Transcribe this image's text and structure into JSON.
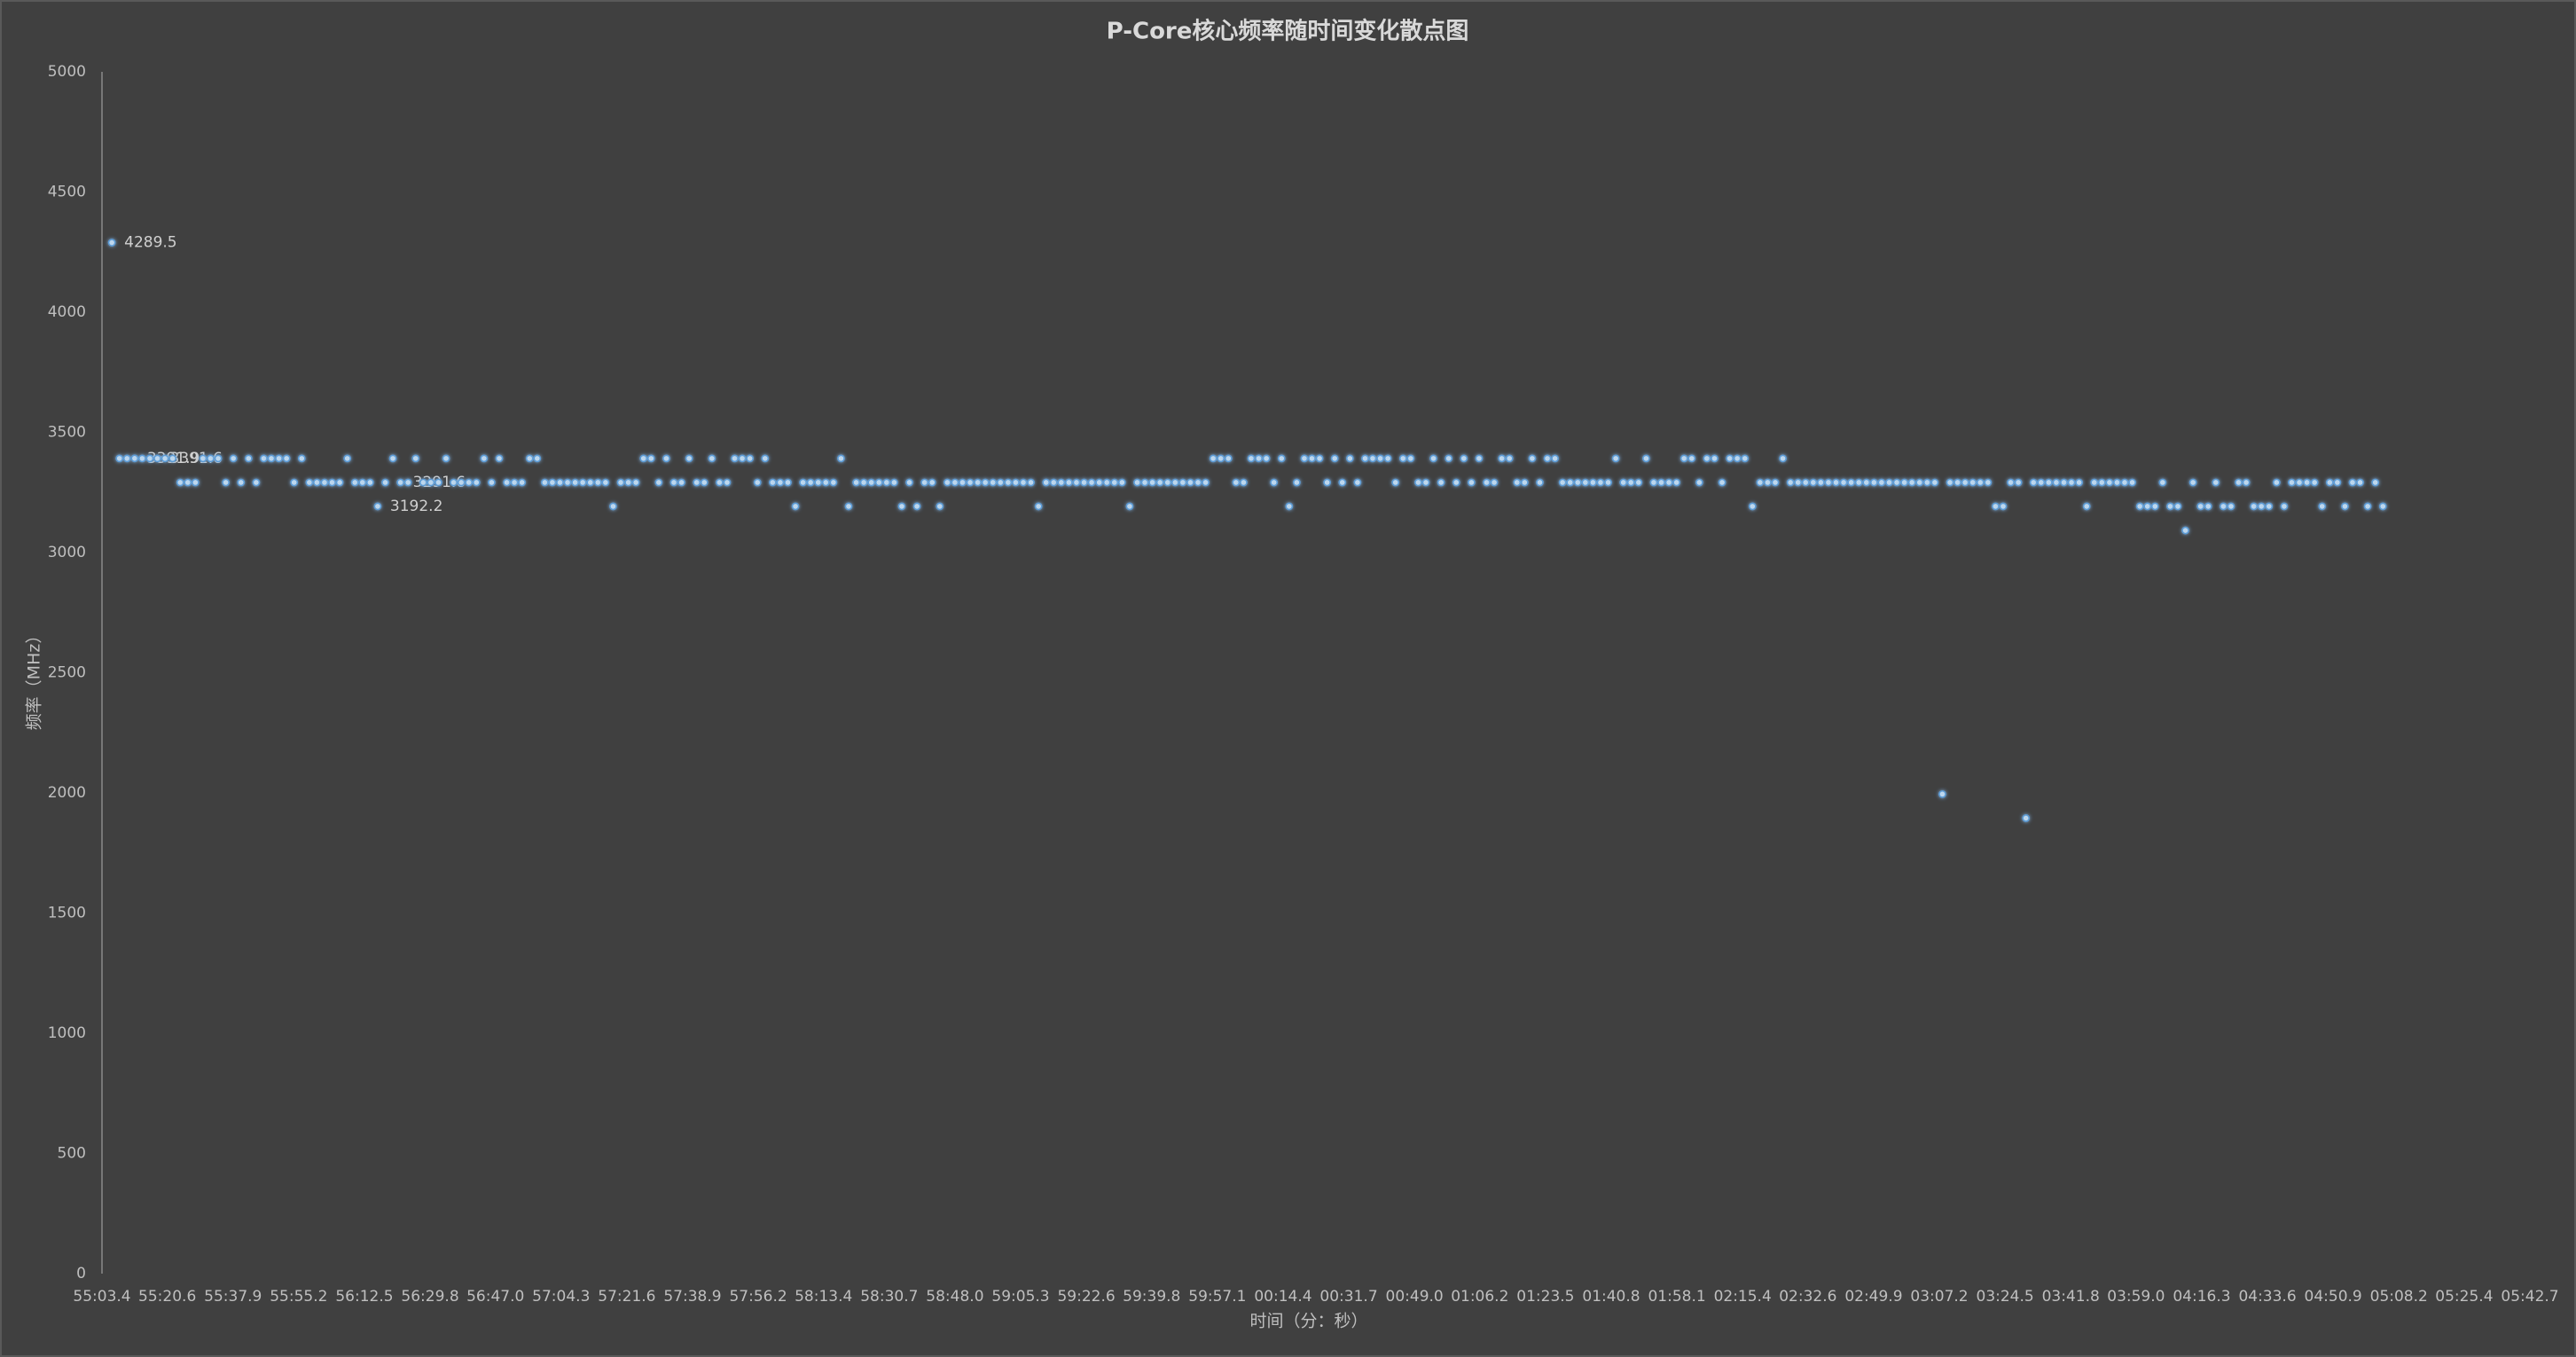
{
  "chart_data": {
    "type": "scatter",
    "title": "P-Core核心频率随时间变化散点图",
    "x_label": "时间（分：秒）",
    "y_label": "频率（MHz）",
    "color": "#5b9bd5",
    "grid": false,
    "xlim": [
      0,
      639.3
    ],
    "xticks": [
      {
        "value": 0,
        "label": "55:03.4"
      },
      {
        "value": 17.2,
        "label": "55:20.6"
      },
      {
        "value": 34.5,
        "label": "55:37.9"
      },
      {
        "value": 51.8,
        "label": "55:55.2"
      },
      {
        "value": 69.1,
        "label": "56:12.5"
      },
      {
        "value": 86.4,
        "label": "56:29.8"
      },
      {
        "value": 103.6,
        "label": "56:47.0"
      },
      {
        "value": 120.9,
        "label": "57:04.3"
      },
      {
        "value": 138.2,
        "label": "57:21.6"
      },
      {
        "value": 155.5,
        "label": "57:38.9"
      },
      {
        "value": 172.8,
        "label": "57:56.2"
      },
      {
        "value": 190.0,
        "label": "58:13.4"
      },
      {
        "value": 207.3,
        "label": "58:30.7"
      },
      {
        "value": 224.6,
        "label": "58:48.0"
      },
      {
        "value": 241.9,
        "label": "59:05.3"
      },
      {
        "value": 259.2,
        "label": "59:22.6"
      },
      {
        "value": 276.4,
        "label": "59:39.8"
      },
      {
        "value": 293.7,
        "label": "59:57.1"
      },
      {
        "value": 311.0,
        "label": "00:14.4"
      },
      {
        "value": 328.3,
        "label": "00:31.7"
      },
      {
        "value": 345.6,
        "label": "00:49.0"
      },
      {
        "value": 362.8,
        "label": "01:06.2"
      },
      {
        "value": 380.1,
        "label": "01:23.5"
      },
      {
        "value": 397.4,
        "label": "01:40.8"
      },
      {
        "value": 414.7,
        "label": "01:58.1"
      },
      {
        "value": 432.0,
        "label": "02:15.4"
      },
      {
        "value": 449.2,
        "label": "02:32.6"
      },
      {
        "value": 466.5,
        "label": "02:49.9"
      },
      {
        "value": 483.8,
        "label": "03:07.2"
      },
      {
        "value": 501.1,
        "label": "03:24.5"
      },
      {
        "value": 518.4,
        "label": "03:41.8"
      },
      {
        "value": 535.6,
        "label": "03:59.0"
      },
      {
        "value": 552.9,
        "label": "04:16.3"
      },
      {
        "value": 570.2,
        "label": "04:33.6"
      },
      {
        "value": 587.5,
        "label": "04:50.9"
      },
      {
        "value": 604.8,
        "label": "05:08.2"
      },
      {
        "value": 622.0,
        "label": "05:25.4"
      },
      {
        "value": 639.3,
        "label": "05:42.7"
      }
    ],
    "ylim": [
      0,
      5000
    ],
    "yticks": [
      0,
      500,
      1000,
      1500,
      2000,
      2500,
      3000,
      3500,
      4000,
      4500,
      5000
    ],
    "x": [
      2.6,
      4.6,
      6.6,
      8.6,
      10.6,
      12.6,
      14.6,
      16.6,
      18.6,
      20.6,
      22.6,
      24.6,
      26.6,
      28.6,
      30.6,
      32.6,
      34.6,
      36.6,
      38.6,
      40.6,
      42.6,
      44.6,
      46.6,
      48.6,
      50.6,
      52.6,
      54.6,
      56.6,
      58.6,
      60.6,
      62.6,
      64.6,
      66.6,
      68.6,
      70.6,
      72.6,
      74.6,
      76.6,
      78.6,
      80.6,
      82.6,
      84.6,
      86.6,
      88.6,
      90.6,
      92.6,
      94.6,
      96.6,
      98.6,
      100.6,
      102.6,
      104.6,
      106.6,
      108.6,
      110.6,
      112.6,
      114.6,
      116.6,
      118.6,
      120.6,
      122.6,
      124.6,
      126.6,
      128.6,
      130.6,
      132.6,
      134.6,
      136.6,
      138.6,
      140.6,
      142.6,
      144.6,
      146.6,
      148.6,
      150.6,
      152.6,
      154.6,
      156.6,
      158.6,
      160.6,
      162.6,
      164.6,
      166.6,
      168.6,
      170.6,
      172.6,
      174.6,
      176.6,
      178.6,
      180.6,
      182.6,
      184.6,
      186.6,
      188.6,
      190.6,
      192.6,
      194.6,
      196.6,
      198.6,
      200.6,
      202.6,
      204.6,
      206.6,
      208.6,
      210.6,
      212.6,
      214.6,
      216.6,
      218.6,
      220.6,
      222.6,
      224.6,
      226.6,
      228.6,
      230.6,
      232.6,
      234.6,
      236.6,
      238.6,
      240.6,
      242.6,
      244.6,
      246.6,
      248.6,
      250.6,
      252.6,
      254.6,
      256.6,
      258.6,
      260.6,
      262.6,
      264.6,
      266.6,
      268.6,
      270.6,
      272.6,
      274.6,
      276.6,
      278.6,
      280.6,
      282.6,
      284.6,
      286.6,
      288.6,
      290.6,
      292.6,
      294.6,
      296.6,
      298.6,
      300.6,
      302.6,
      304.6,
      306.6,
      308.6,
      310.6,
      312.6,
      314.6,
      316.6,
      318.6,
      320.6,
      322.6,
      324.6,
      326.6,
      328.6,
      330.6,
      332.6,
      334.6,
      336.6,
      338.6,
      340.6,
      342.6,
      344.6,
      346.6,
      348.6,
      350.6,
      352.6,
      354.6,
      356.6,
      358.6,
      360.6,
      362.6,
      364.6,
      366.6,
      368.6,
      370.6,
      372.6,
      374.6,
      376.6,
      378.6,
      380.6,
      382.6,
      384.6,
      386.6,
      388.6,
      390.6,
      392.6,
      394.6,
      396.6,
      398.6,
      400.6,
      402.6,
      404.6,
      406.6,
      408.6,
      410.6,
      412.6,
      414.6,
      416.6,
      418.6,
      420.6,
      422.6,
      424.6,
      426.6,
      428.6,
      430.6,
      432.6,
      434.6,
      436.6,
      438.6,
      440.6,
      442.6,
      444.6,
      446.6,
      448.6,
      450.6,
      452.6,
      454.6,
      456.6,
      458.6,
      460.6,
      462.6,
      464.6,
      466.6,
      468.6,
      470.6,
      472.6,
      474.6,
      476.6,
      478.6,
      480.6,
      482.6,
      484.6,
      486.6,
      488.6,
      490.6,
      492.6,
      494.6,
      496.6,
      498.6,
      500.6,
      502.6,
      504.6,
      506.6,
      508.6,
      510.6,
      512.6,
      514.6,
      516.6,
      518.6,
      520.6,
      522.6,
      524.6,
      526.6,
      528.6,
      530.6,
      532.6,
      534.6,
      536.6,
      538.6,
      540.6,
      542.6,
      544.6,
      546.6,
      548.6,
      550.6,
      552.6,
      554.6,
      556.6,
      558.6,
      560.6,
      562.6,
      564.6,
      566.6,
      568.6,
      570.6,
      572.6,
      574.6,
      576.6,
      578.6,
      580.6,
      582.6,
      584.6,
      586.6,
      588.6,
      590.6,
      592.6,
      594.6,
      596.6,
      598.6,
      600.6
    ],
    "values": [
      4289.5,
      3391.6,
      3391.6,
      3391.9,
      3391.6,
      3391.6,
      3391.6,
      3391.6,
      3391.6,
      3291.6,
      3291.6,
      3291.6,
      3391.6,
      3391.6,
      3391.6,
      3291.6,
      3391.6,
      3291.6,
      3391.6,
      3291.6,
      3391.6,
      3391.6,
      3391.6,
      3391.6,
      3291.6,
      3391.6,
      3291.6,
      3291.6,
      3291.6,
      3291.6,
      3291.6,
      3391.6,
      3291.6,
      3291.6,
      3291.6,
      3192.2,
      3291.6,
      3391.6,
      3291.6,
      3291.6,
      3391.6,
      3291.6,
      3291.6,
      3291.6,
      3391.6,
      3291.6,
      3291.6,
      3291.6,
      3291.6,
      3391.6,
      3291.6,
      3391.6,
      3291.6,
      3291.6,
      3291.6,
      3391.6,
      3391.6,
      3291.6,
      3291.6,
      3291.6,
      3291.6,
      3291.6,
      3291.6,
      3291.6,
      3291.6,
      3291.6,
      3192.2,
      3291.6,
      3291.6,
      3291.6,
      3391.6,
      3391.6,
      3291.6,
      3391.6,
      3291.6,
      3291.6,
      3391.6,
      3291.6,
      3291.6,
      3391.6,
      3291.6,
      3291.6,
      3391.6,
      3391.6,
      3391.6,
      3291.6,
      3391.6,
      3291.6,
      3291.6,
      3291.6,
      3192.2,
      3291.6,
      3291.6,
      3291.6,
      3291.6,
      3291.6,
      3391.6,
      3192.2,
      3291.6,
      3291.6,
      3291.6,
      3291.6,
      3291.6,
      3291.6,
      3192.2,
      3291.6,
      3192.2,
      3291.6,
      3291.6,
      3192.2,
      3291.6,
      3291.6,
      3291.6,
      3291.6,
      3291.6,
      3291.6,
      3291.6,
      3291.6,
      3291.6,
      3291.6,
      3291.6,
      3291.6,
      3192.2,
      3291.6,
      3291.6,
      3291.6,
      3291.6,
      3291.6,
      3291.6,
      3291.6,
      3291.6,
      3291.6,
      3291.6,
      3291.6,
      3192.2,
      3291.6,
      3291.6,
      3291.6,
      3291.6,
      3291.6,
      3291.6,
      3291.6,
      3291.6,
      3291.6,
      3291.6,
      3391.6,
      3391.6,
      3391.6,
      3291.6,
      3291.6,
      3391.6,
      3391.6,
      3391.6,
      3291.6,
      3391.6,
      3192.2,
      3291.6,
      3391.6,
      3391.6,
      3391.6,
      3291.6,
      3391.6,
      3291.6,
      3391.6,
      3291.6,
      3391.6,
      3391.6,
      3391.6,
      3391.6,
      3291.6,
      3391.6,
      3391.6,
      3291.6,
      3291.6,
      3391.6,
      3291.6,
      3391.6,
      3291.6,
      3391.6,
      3291.6,
      3391.6,
      3291.6,
      3291.6,
      3391.6,
      3391.6,
      3291.6,
      3291.6,
      3391.6,
      3291.6,
      3391.6,
      3391.6,
      3291.6,
      3291.6,
      3291.6,
      3291.6,
      3291.6,
      3291.6,
      3291.6,
      3391.6,
      3291.6,
      3291.6,
      3291.6,
      3391.6,
      3291.6,
      3291.6,
      3291.6,
      3291.6,
      3391.6,
      3391.6,
      3291.6,
      3391.6,
      3391.6,
      3291.6,
      3391.6,
      3391.6,
      3391.6,
      3192.2,
      3291.6,
      3291.6,
      3291.6,
      3391.6,
      3291.6,
      3291.6,
      3291.6,
      3291.6,
      3291.6,
      3291.6,
      3291.6,
      3291.6,
      3291.6,
      3291.6,
      3291.6,
      3291.6,
      3291.6,
      3291.6,
      3291.6,
      3291.6,
      3291.6,
      3291.6,
      3291.6,
      3291.6,
      1995,
      3291.6,
      3291.6,
      3291.6,
      3291.6,
      3291.6,
      3291.6,
      3192.2,
      3192.2,
      3291.6,
      3291.6,
      1895,
      3291.6,
      3291.6,
      3291.6,
      3291.6,
      3291.6,
      3291.6,
      3291.6,
      3192.2,
      3291.6,
      3291.6,
      3291.6,
      3291.6,
      3291.6,
      3291.6,
      3192.2,
      3192.2,
      3192.2,
      3291.6,
      3192.2,
      3192.2,
      3092,
      3291.6,
      3192.2,
      3192.2,
      3291.6,
      3192.2,
      3192.2,
      3291.6,
      3291.6,
      3192.2,
      3192.2,
      3192.2,
      3291.6,
      3192.2,
      3291.6,
      3291.6,
      3291.6,
      3291.6,
      3192.2,
      3291.6,
      3291.6,
      3192.2,
      3291.6,
      3291.6,
      3192.2,
      3291.6,
      3192.2
    ],
    "value_labels": [
      "4289.5",
      null,
      null,
      "3391.9",
      null,
      null,
      "3391.6",
      null,
      null,
      null,
      null,
      null,
      null,
      null,
      null,
      null,
      null,
      null,
      null,
      null,
      null,
      null,
      null,
      null,
      null,
      null,
      null,
      null,
      null,
      null,
      null,
      null,
      null,
      null,
      null,
      "3192.2",
      null,
      null,
      "3291.6",
      null,
      null,
      null,
      null,
      null,
      null,
      null,
      null,
      null,
      null,
      null,
      null,
      null,
      null,
      null,
      null,
      null,
      null,
      null,
      null,
      null,
      null,
      null,
      null,
      null,
      null,
      null,
      null,
      null,
      null,
      null,
      null,
      null,
      null,
      null,
      null,
      null,
      null,
      null,
      null,
      null,
      null,
      null,
      null,
      null,
      null,
      null,
      null,
      null,
      null,
      null,
      null,
      null,
      null,
      null,
      null,
      null,
      null,
      null,
      null,
      null,
      null,
      null,
      null,
      null,
      null,
      null,
      null,
      null,
      null,
      null,
      null,
      null,
      null,
      null,
      null,
      null,
      null,
      null,
      null,
      null,
      null,
      null,
      null,
      null,
      null,
      null,
      null,
      null,
      null,
      null,
      null,
      null,
      null,
      null,
      null,
      null,
      null,
      null,
      null,
      null,
      null,
      null,
      null,
      null,
      null,
      null,
      null,
      null,
      null,
      null,
      null,
      null,
      null,
      null,
      null,
      null,
      null,
      null,
      null,
      null,
      null,
      null,
      null,
      null,
      null,
      null,
      null,
      null,
      null,
      null,
      null,
      null,
      null,
      null,
      null,
      null,
      null,
      null,
      null,
      null,
      null,
      null,
      null,
      null,
      null,
      null,
      null,
      null,
      null,
      null,
      null,
      null,
      null,
      null,
      null,
      null,
      null,
      null,
      null,
      null,
      null,
      null,
      null,
      null,
      null,
      null,
      null,
      null,
      null,
      null,
      null,
      null,
      null,
      null,
      null,
      null,
      null,
      null,
      null,
      null,
      null,
      null,
      null,
      null,
      null,
      null,
      null,
      null,
      null,
      null,
      null,
      null,
      null,
      null,
      null,
      null,
      null,
      null,
      null,
      null,
      null,
      null,
      null,
      null,
      null,
      null,
      null,
      null,
      null,
      null,
      null,
      null,
      null,
      null,
      null,
      null,
      null,
      null,
      null,
      null,
      null,
      null,
      null,
      null,
      null,
      null,
      null,
      null,
      null,
      null,
      null,
      null,
      null,
      null,
      null,
      null,
      null,
      null,
      null,
      null,
      null,
      null,
      null,
      null,
      null,
      null,
      null,
      null,
      null,
      null,
      null,
      null,
      null,
      null,
      null,
      null,
      null,
      null,
      null,
      null
    ]
  }
}
